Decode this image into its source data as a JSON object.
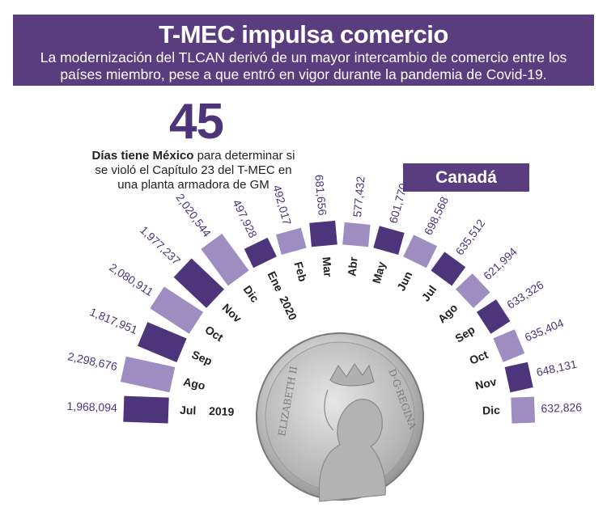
{
  "header": {
    "title": "T-MEC impulsa comercio",
    "subtitle": "La modernización del TLCAN derivó de un mayor intercambio de comercio entre los países miembro, pese a que entró en vigor durante la pandemia de Covid-19."
  },
  "highlight": {
    "number": "45",
    "caption_bold": "Días tiene México",
    "caption_rest": " para determinar si se violó el Capítulo 23 del T-MEC en una planta armadora de GM"
  },
  "country_label": "Canadá",
  "colors": {
    "banner": "#5a3d7e",
    "dark_bar": "#4c357a",
    "light_bar": "#9e8dc0",
    "value_text": "#4c357a"
  },
  "chart_data": {
    "type": "bar",
    "layout": "semicircular",
    "title": "",
    "categories": [
      "Jul",
      "Ago",
      "Sep",
      "Oct",
      "Nov",
      "Dic",
      "Ene",
      "Feb",
      "Mar",
      "Abr",
      "May",
      "Jun",
      "Jul",
      "Ago",
      "Sep",
      "Oct",
      "Nov",
      "Dic"
    ],
    "year_labels": [
      "2019",
      "2020"
    ],
    "values": [
      1968094,
      2298676,
      1817951,
      2080911,
      1977237,
      2020544,
      497928,
      492017,
      681656,
      577432,
      601770,
      698568,
      635512,
      621994,
      633326,
      635404,
      648131,
      632826
    ],
    "value_labels": [
      "1,968,094",
      "2,298,676",
      "1,817,951",
      "2,080,911",
      "1,977,237",
      "2,020,544",
      "497,928",
      "492,017",
      "681,656",
      "577,432",
      "601,770",
      "698,568",
      "635,512",
      "621,994",
      "633,326",
      "635,404",
      "648,131",
      "632,826"
    ],
    "series": [
      {
        "values": [
          1968094,
          2298676,
          1817951,
          2080911,
          1977237,
          2020544,
          497928,
          492017,
          681656,
          577432,
          601770,
          698568,
          635512,
          621994,
          633326,
          635404,
          648131,
          632826
        ]
      }
    ],
    "image": "canadian-coin-elizabeth-ii"
  }
}
